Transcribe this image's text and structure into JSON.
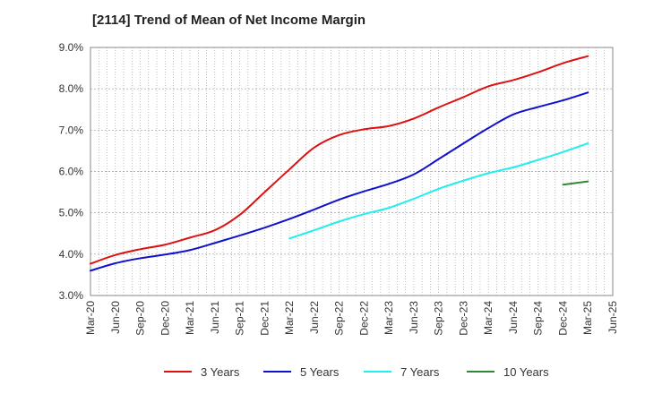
{
  "chart_data": {
    "type": "line",
    "title": "[2114]  Trend of Mean of Net Income Margin",
    "xlabel": "",
    "ylabel": "",
    "x_ticks": [
      "Mar-20",
      "Jun-20",
      "Sep-20",
      "Dec-20",
      "Mar-21",
      "Jun-21",
      "Sep-21",
      "Dec-21",
      "Mar-22",
      "Jun-22",
      "Sep-22",
      "Dec-22",
      "Mar-23",
      "Jun-23",
      "Sep-23",
      "Dec-23",
      "Mar-24",
      "Jun-24",
      "Sep-24",
      "Dec-24",
      "Mar-25",
      "Jun-25"
    ],
    "y_ticks": [
      "3.0%",
      "4.0%",
      "5.0%",
      "6.0%",
      "7.0%",
      "8.0%",
      "9.0%"
    ],
    "ylim": [
      3.0,
      9.0
    ],
    "y_unit": "%",
    "grid": true,
    "legend_position": "bottom",
    "series": [
      {
        "name": "3 Years",
        "color": "#dd1111",
        "x": [
          "Mar-20",
          "Jun-20",
          "Sep-20",
          "Dec-20",
          "Mar-21",
          "Jun-21",
          "Sep-21",
          "Dec-21",
          "Mar-22",
          "Jun-22",
          "Sep-22",
          "Dec-22",
          "Mar-23",
          "Jun-23",
          "Sep-23",
          "Dec-23",
          "Mar-24",
          "Jun-24",
          "Sep-24",
          "Dec-24",
          "Mar-25"
        ],
        "values": [
          3.77,
          3.98,
          4.12,
          4.23,
          4.4,
          4.58,
          4.95,
          5.5,
          6.05,
          6.58,
          6.88,
          7.02,
          7.1,
          7.28,
          7.55,
          7.8,
          8.06,
          8.21,
          8.4,
          8.62,
          8.79
        ]
      },
      {
        "name": "5 Years",
        "color": "#1111cc",
        "x": [
          "Mar-20",
          "Jun-20",
          "Sep-20",
          "Dec-20",
          "Mar-21",
          "Jun-21",
          "Sep-21",
          "Dec-21",
          "Mar-22",
          "Jun-22",
          "Sep-22",
          "Dec-22",
          "Mar-23",
          "Jun-23",
          "Sep-23",
          "Dec-23",
          "Mar-24",
          "Jun-24",
          "Sep-24",
          "Dec-24",
          "Mar-25"
        ],
        "values": [
          3.6,
          3.78,
          3.9,
          3.99,
          4.1,
          4.27,
          4.45,
          4.64,
          4.85,
          5.08,
          5.32,
          5.52,
          5.7,
          5.93,
          6.3,
          6.68,
          7.05,
          7.38,
          7.56,
          7.72,
          7.91
        ]
      },
      {
        "name": "7 Years",
        "color": "#22eeee",
        "x": [
          "Mar-22",
          "Jun-22",
          "Sep-22",
          "Dec-22",
          "Mar-23",
          "Jun-23",
          "Sep-23",
          "Dec-23",
          "Mar-24",
          "Jun-24",
          "Sep-24",
          "Dec-24",
          "Mar-25"
        ],
        "values": [
          4.38,
          4.58,
          4.79,
          4.97,
          5.12,
          5.34,
          5.58,
          5.78,
          5.96,
          6.1,
          6.28,
          6.47,
          6.68
        ]
      },
      {
        "name": "10 Years",
        "color": "#338833",
        "x": [
          "Dec-24",
          "Mar-25"
        ],
        "values": [
          5.68,
          5.76
        ]
      }
    ]
  }
}
